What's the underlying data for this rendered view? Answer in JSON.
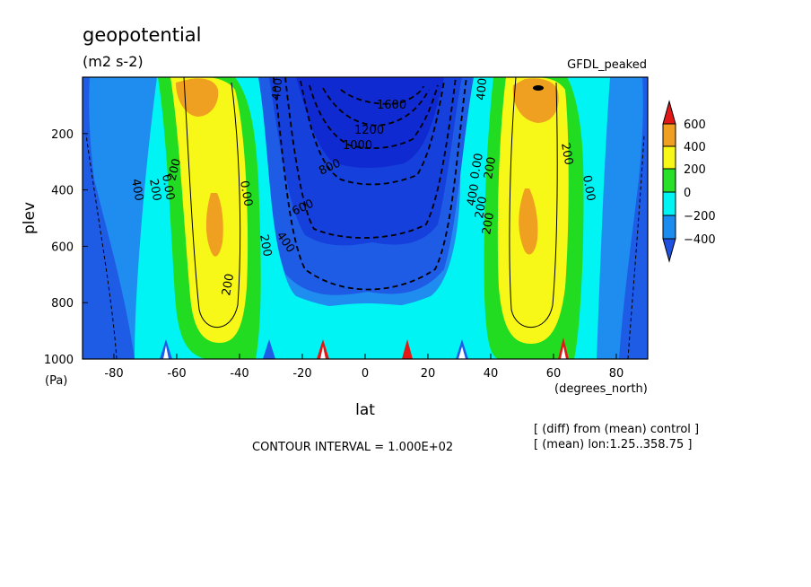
{
  "chart_data": {
    "type": "heatmap",
    "title": "geopotential",
    "units": "(m2 s-2)",
    "dataset": "GFDL_peaked",
    "xlabel": "lat",
    "x_units": "(degrees_north)",
    "ylabel": "plev",
    "y_units": "(Pa)",
    "xlim": [
      -90,
      90
    ],
    "ylim": [
      1000,
      0
    ],
    "x_ticks": [
      -80,
      -60,
      -40,
      -20,
      0,
      20,
      40,
      60,
      80
    ],
    "y_ticks": [
      200,
      400,
      600,
      800,
      1000
    ],
    "x_tick_labels": [
      "-80",
      "-60",
      "-40",
      "-20",
      "0",
      "20",
      "40",
      "60",
      "80"
    ],
    "y_tick_labels": [
      "200",
      "400",
      "600",
      "800",
      "1000"
    ],
    "contour_interval_text": "CONTOUR INTERVAL = 1.000E+02",
    "note_diff": "[ (diff) from (mean) control ]",
    "note_mean": "[ (mean) lon:1.25..358.75 ]",
    "colorbar": {
      "levels": [
        "600",
        "400",
        "200",
        "0",
        "−200",
        "−400"
      ],
      "colors": [
        "#e01818",
        "#f0a020",
        "#f8f818",
        "#28e028",
        "#00f4f4",
        "#1a8cf0",
        "#2050e0"
      ]
    },
    "fill_colors": {
      "le_-1200": "#0f2ad0",
      "-1200_-800": "#1640dc",
      "-800_-400": "#1f5ce6",
      "-400_-200": "#1f8cf0",
      "-200_0": "#00f4f4",
      "0_200": "#22dc22",
      "200_400": "#f8f818",
      "400_600": "#f0a020"
    },
    "contour_labels": [
      "1600",
      "1200",
      "1000",
      "800",
      "600",
      "400",
      "400",
      "400",
      "400",
      "400",
      "200",
      "200",
      "200",
      "200",
      "200",
      "200",
      "200",
      "200",
      "0.00",
      "0.00",
      "0.00",
      "0.00"
    ],
    "series": [
      {
        "region": "southern jet core",
        "lat": -49,
        "plev_range": [
          380,
          580
        ],
        "level": ">400"
      },
      {
        "region": "northern jet core",
        "lat": 51,
        "plev_range": [
          360,
          580
        ],
        "level": ">400"
      },
      {
        "region": "southern upper max",
        "lat": -52,
        "plev_range": [
          30,
          130
        ],
        "level": ">400"
      },
      {
        "region": "northern upper max",
        "lat": 55,
        "plev_range": [
          30,
          130
        ],
        "level": ">600"
      },
      {
        "region": "equatorial minimum",
        "lat": 2,
        "plev_range": [
          30,
          200
        ],
        "level": "<-1600"
      }
    ]
  }
}
